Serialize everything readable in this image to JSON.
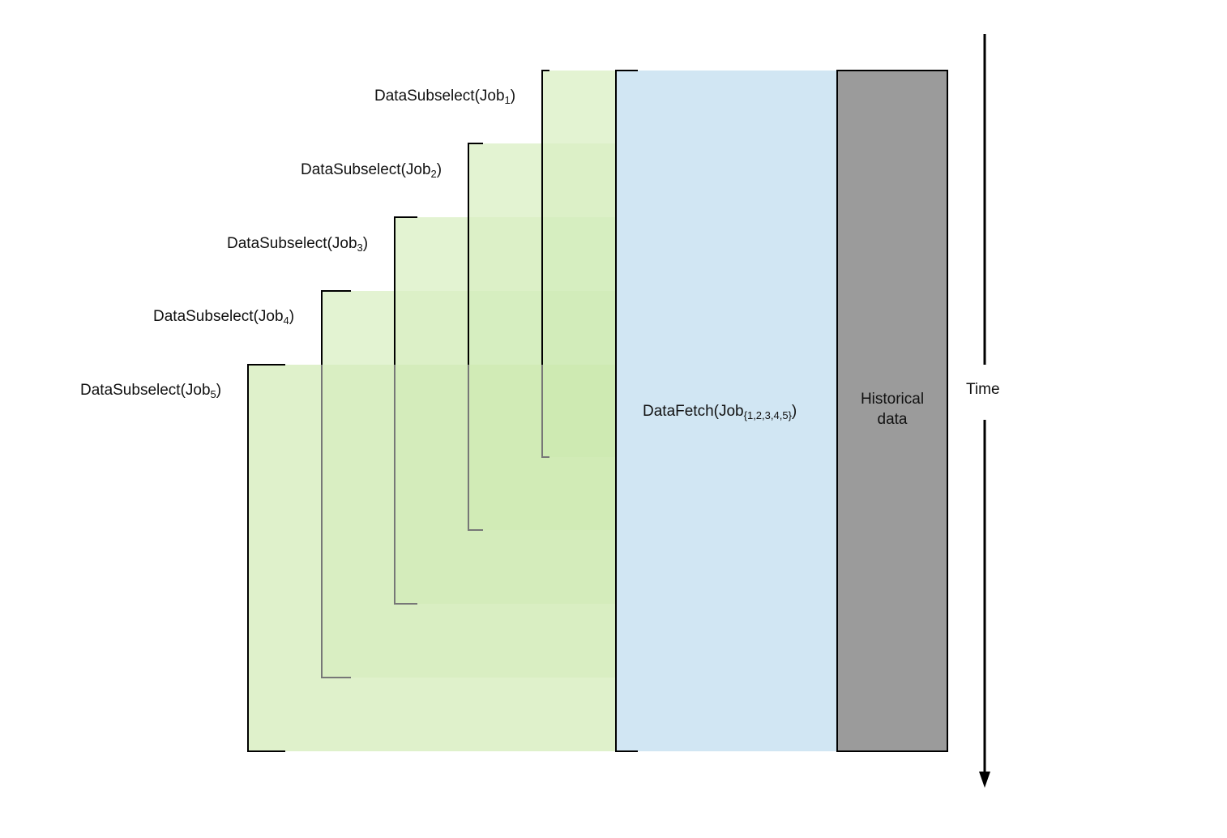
{
  "diagram": {
    "subselects": [
      {
        "prefix": "DataSubselect(Job",
        "sub": "1",
        "suffix": ")"
      },
      {
        "prefix": "DataSubselect(Job",
        "sub": "2",
        "suffix": ")"
      },
      {
        "prefix": "DataSubselect(Job",
        "sub": "3",
        "suffix": ")"
      },
      {
        "prefix": "DataSubselect(Job",
        "sub": "4",
        "suffix": ")"
      },
      {
        "prefix": "DataSubselect(Job",
        "sub": "5",
        "suffix": ")"
      }
    ],
    "fetch": {
      "prefix": "DataFetch(Job",
      "sub": "{1,2,3,4,5}",
      "suffix": ")"
    },
    "historical": {
      "line1": "Historical",
      "line2": "data"
    },
    "time_label": "Time",
    "colors": {
      "subselect_fill": "#c9e8a8",
      "fetch_fill": "#d1e6f3",
      "historical_fill": "#9b9b9b",
      "outline": "#000000"
    }
  }
}
